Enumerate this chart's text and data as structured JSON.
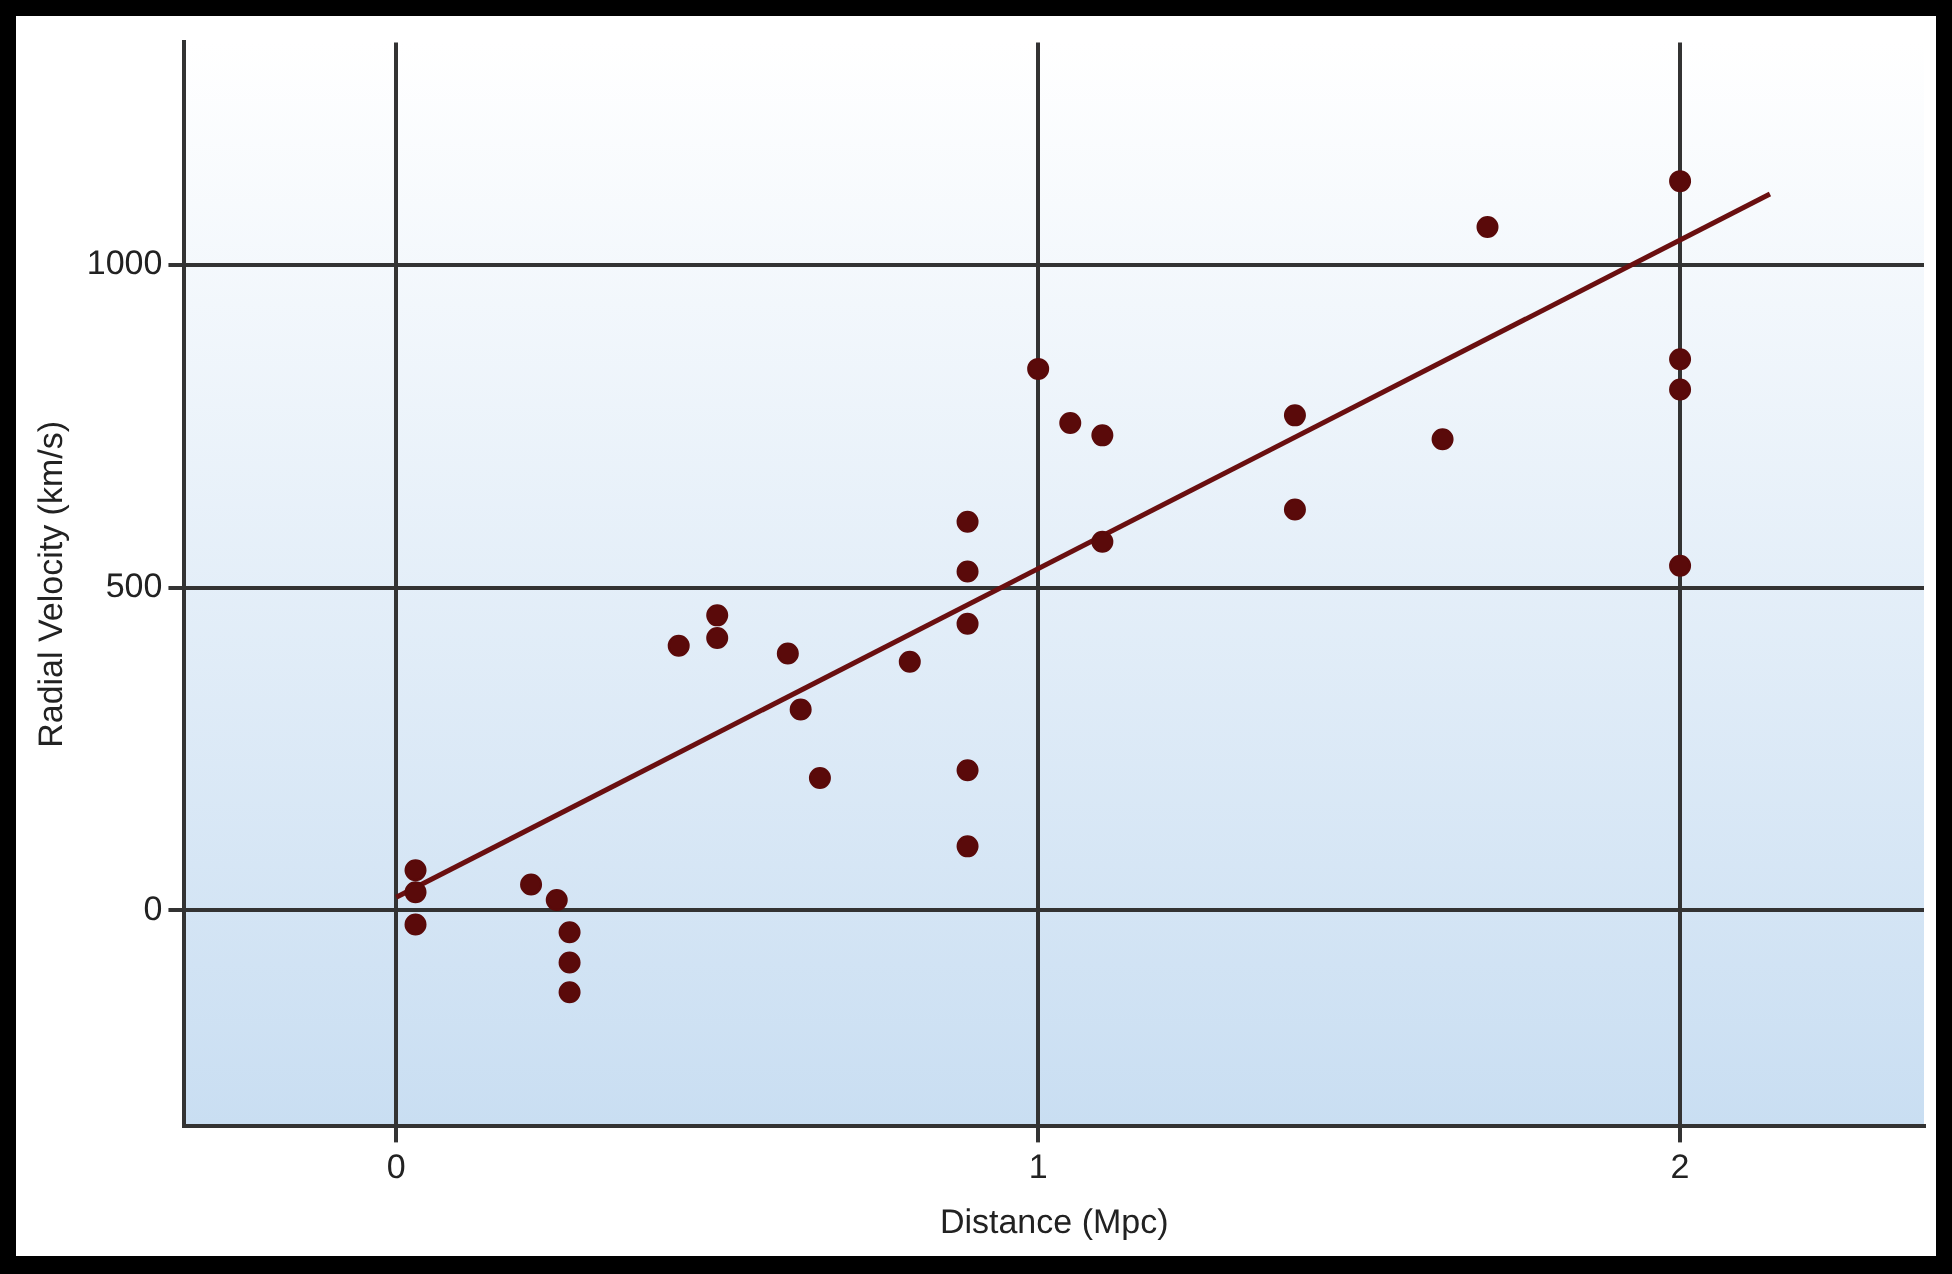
{
  "chart_data": {
    "type": "scatter",
    "xlabel": "Distance (Mpc)",
    "ylabel": "Radial Velocity (km/s)",
    "xlim": [
      -0.33,
      2.38
    ],
    "ylim": [
      -335,
      1345
    ],
    "xticks": [
      0,
      1,
      2
    ],
    "yticks": [
      0,
      500,
      1000
    ],
    "grid": true,
    "marker": "circle",
    "series": [
      {
        "color": "#5a0a0a",
        "x": [
          0.03,
          0.03,
          0.03,
          0.21,
          0.25,
          0.27,
          0.27,
          0.27,
          0.44,
          0.5,
          0.5,
          0.61,
          0.63,
          0.66,
          0.8,
          0.89,
          0.89,
          0.89,
          0.89,
          0.89,
          1.0,
          1.05,
          1.1,
          1.1,
          1.4,
          1.4,
          1.63,
          1.7,
          2.0,
          2.0,
          2.0,
          2.0
        ],
        "values": [
          62,
          28,
          -22,
          40,
          16,
          -34,
          -81,
          -127,
          410,
          457,
          422,
          398,
          311,
          205,
          385,
          602,
          525,
          444,
          217,
          99,
          839,
          755,
          736,
          571,
          767,
          621,
          730,
          1059,
          1130,
          854,
          807,
          534
        ]
      },
      {
        "type": "line",
        "color": "#6a0f10",
        "x": [
          0,
          2.14
        ],
        "values": [
          20,
          1110
        ],
        "marker": "none"
      }
    ]
  }
}
